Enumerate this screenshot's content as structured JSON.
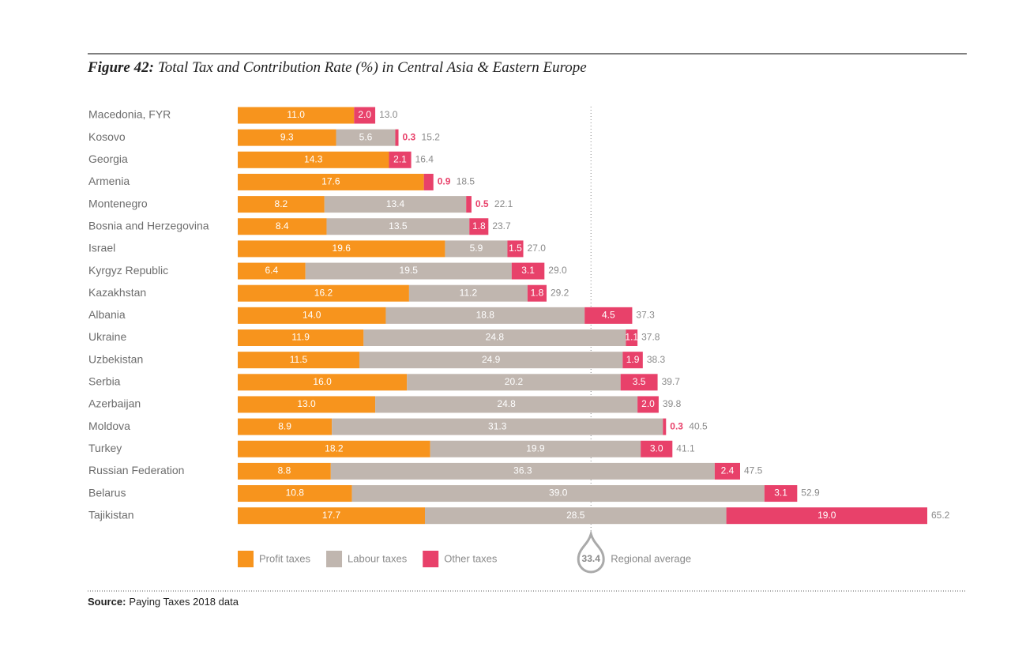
{
  "chart_data": {
    "type": "stacked-bar",
    "title_label": "Figure 42:",
    "title": "Total Tax and Contribution Rate (%) in Central Asia & Eastern Europe",
    "categories": [
      "Macedonia, FYR",
      "Kosovo",
      "Georgia",
      "Armenia",
      "Montenegro",
      "Bosnia and Herzegovina",
      "Israel",
      "Kyrgyz Republic",
      "Kazakhstan",
      "Albania",
      "Ukraine",
      "Uzbekistan",
      "Serbia",
      "Azerbaijan",
      "Moldova",
      "Turkey",
      "Russian Federation",
      "Belarus",
      "Tajikistan"
    ],
    "series": [
      {
        "name": "Profit taxes",
        "color": "#f7941d",
        "values": [
          11.0,
          9.3,
          14.3,
          17.6,
          8.2,
          8.4,
          19.6,
          6.4,
          16.2,
          14.0,
          11.9,
          11.5,
          16.0,
          13.0,
          8.9,
          18.2,
          8.8,
          10.8,
          17.7
        ],
        "value_labels": [
          "11.0",
          "9.3",
          "14.3",
          "17.6",
          "8.2",
          "8.4",
          "19.6",
          "6.4",
          "16.2",
          "14.0",
          "11.9",
          "11.5",
          "16.0",
          "13.0",
          "8.9",
          "18.2",
          "8.8",
          "10.8",
          "17.7"
        ]
      },
      {
        "name": "Labour taxes",
        "color": "#c0b6af",
        "values": [
          null,
          5.6,
          null,
          null,
          13.4,
          13.5,
          5.9,
          19.5,
          11.2,
          18.8,
          24.8,
          24.9,
          20.2,
          24.8,
          31.3,
          19.9,
          36.3,
          39.0,
          28.5
        ],
        "value_labels": [
          null,
          "5.6",
          null,
          null,
          "13.4",
          "13.5",
          "5.9",
          "19.5",
          "11.2",
          "18.8",
          "24.8",
          "24.9",
          "20.2",
          "24.8",
          "31.3",
          "19.9",
          "36.3",
          "39.0",
          "28.5"
        ]
      },
      {
        "name": "Other taxes",
        "color": "#e8416a",
        "values": [
          2.0,
          0.3,
          2.1,
          0.9,
          0.5,
          1.8,
          1.5,
          3.1,
          1.8,
          4.5,
          1.1,
          1.9,
          3.5,
          2.0,
          0.3,
          3.0,
          2.4,
          3.1,
          19.0
        ],
        "value_labels": [
          "2.0",
          "0.3",
          "2.1",
          "0.9",
          "0.5",
          "1.8",
          "1.5",
          "3.1",
          "1.8",
          "4.5",
          "1.1",
          "1.9",
          "3.5",
          "2.0",
          "0.3",
          "3.0",
          "2.4",
          "3.1",
          "19.0"
        ]
      }
    ],
    "totals": {
      "values": [
        13.0,
        15.2,
        16.4,
        18.5,
        22.1,
        23.7,
        27.0,
        29.0,
        29.2,
        37.3,
        37.8,
        38.3,
        39.7,
        39.8,
        40.5,
        41.1,
        47.5,
        52.9,
        65.2
      ],
      "value_labels": [
        "13.0",
        "15.2",
        "16.4",
        "18.5",
        "22.1",
        "23.7",
        "27.0",
        "29.0",
        "29.2",
        "37.3",
        "37.8",
        "38.3",
        "39.7",
        "39.8",
        "40.5",
        "41.1",
        "47.5",
        "52.9",
        "65.2"
      ]
    },
    "average": {
      "value": 33.4,
      "label": "Regional average"
    },
    "source_label": "Source:",
    "source": "Paying Taxes 2018 data"
  }
}
